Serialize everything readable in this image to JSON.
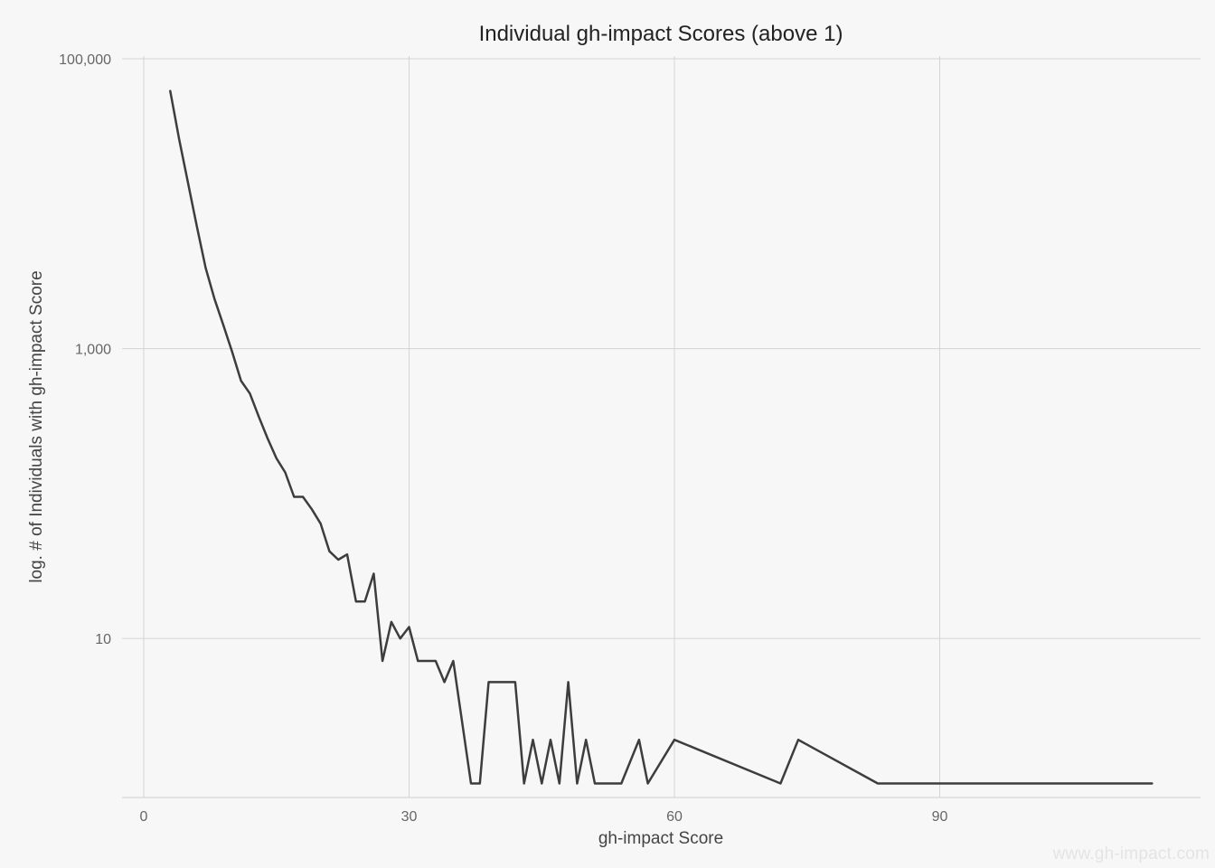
{
  "chart_data": {
    "type": "line",
    "title": "Individual gh-impact Scores (above 1)",
    "xlabel": "gh-impact Score",
    "ylabel": "log. # of Individuals with gh-impact Score",
    "y_scale": "log10",
    "xlim": [
      -1,
      116
    ],
    "ylim": [
      0.8,
      100000
    ],
    "x_ticks": [
      0,
      30,
      60,
      90
    ],
    "x_tick_labels": [
      "0",
      "30",
      "60",
      "90"
    ],
    "y_ticks": [
      10,
      1000,
      100000
    ],
    "y_tick_labels": [
      "10",
      "1,000",
      "100,000"
    ],
    "grid": true,
    "legend": "none",
    "line_color": "#3d3d3d",
    "series": [
      {
        "x": [
          3,
          4,
          5,
          6,
          7,
          8,
          9,
          10,
          11,
          12,
          13,
          14,
          15,
          16,
          17,
          18,
          19,
          20,
          21,
          22,
          23,
          24,
          25,
          26,
          27,
          28,
          29,
          30,
          31,
          32,
          33,
          34,
          35,
          37,
          38,
          39,
          40,
          41,
          42,
          43,
          44,
          45,
          46,
          47,
          48,
          49,
          50,
          51,
          52,
          53,
          54,
          56,
          57,
          60,
          72,
          74,
          83,
          114
        ],
        "values": [
          60000,
          28000,
          14000,
          7000,
          3600,
          2200,
          1450,
          950,
          600,
          490,
          340,
          240,
          175,
          140,
          95,
          95,
          78,
          62,
          40,
          35,
          38,
          18,
          18,
          28,
          7,
          13,
          10,
          12,
          7,
          7,
          7,
          5,
          7,
          1,
          1,
          5,
          5,
          5,
          5,
          1,
          2,
          1,
          2,
          1,
          5,
          1,
          2,
          1,
          1,
          1,
          1,
          2,
          1,
          2,
          1,
          2,
          1,
          1
        ]
      }
    ]
  },
  "watermark": "www.gh-impact.com"
}
